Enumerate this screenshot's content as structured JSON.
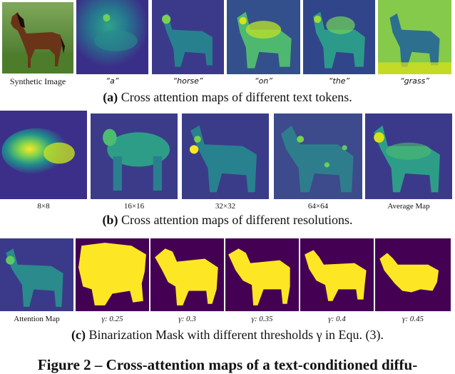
{
  "row_a": {
    "labels": [
      "Synthetic Image",
      "“a”",
      "“horse”",
      "“on”",
      "“the”",
      "“grass”"
    ],
    "caption_prefix": "(a)",
    "caption_text": " Cross attention maps of different text tokens."
  },
  "row_b": {
    "labels": [
      "8×8",
      "16×16",
      "32×32",
      "64×64",
      "Average Map"
    ],
    "caption_prefix": "(b)",
    "caption_text": " Cross attention maps of different resolutions."
  },
  "row_c": {
    "labels": [
      "Attention Map",
      "γ: 0.25",
      "γ: 0.3",
      "γ: 0.35",
      "γ: 0.4",
      "γ: 0.45"
    ],
    "caption_prefix": "(c)",
    "caption_text": " Binarization Mask with different thresholds γ in Equ. (3)."
  },
  "figure_title": "Figure 2 – Cross-attention maps of a text-conditioned diffu-",
  "colors": {
    "viridis_dark": "#440154",
    "viridis_mid": "#21918c",
    "viridis_yellow": "#fde725",
    "map_bg": "#3b2f8a"
  }
}
